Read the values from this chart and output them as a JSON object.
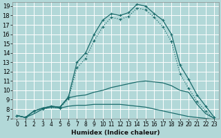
{
  "title": "",
  "xlabel": "Humidex (Indice chaleur)",
  "bg_color": "#b2d8d8",
  "grid_color": "#ffffff",
  "line_color": "#1a6b6b",
  "xlim": [
    -0.5,
    23.5
  ],
  "ylim": [
    7,
    19.4
  ],
  "xticks": [
    0,
    1,
    2,
    3,
    4,
    5,
    6,
    7,
    8,
    9,
    10,
    11,
    12,
    13,
    14,
    15,
    16,
    17,
    18,
    19,
    20,
    21,
    22,
    23
  ],
  "yticks": [
    7,
    8,
    9,
    10,
    11,
    12,
    13,
    14,
    15,
    16,
    17,
    18,
    19
  ],
  "c1_x": [
    0,
    1,
    2,
    3,
    4,
    5,
    6,
    7,
    8,
    9,
    10,
    11,
    12,
    13,
    14,
    15,
    16,
    17,
    18,
    19,
    20,
    21,
    22,
    23
  ],
  "c1_y": [
    7.3,
    7.1,
    7.8,
    8.1,
    8.3,
    8.2,
    9.3,
    13.0,
    14.0,
    16.0,
    17.5,
    18.2,
    18.0,
    18.3,
    19.2,
    19.0,
    18.2,
    17.5,
    16.0,
    12.7,
    11.2,
    9.5,
    8.3,
    7.1
  ],
  "c2_x": [
    0,
    1,
    2,
    3,
    4,
    5,
    6,
    7,
    8,
    9,
    10,
    11,
    12,
    13,
    14,
    15,
    16,
    17,
    18,
    19,
    20,
    21,
    22,
    23
  ],
  "c2_y": [
    7.3,
    7.1,
    7.8,
    8.0,
    8.2,
    8.1,
    9.1,
    12.4,
    13.4,
    15.3,
    16.8,
    17.8,
    17.6,
    17.9,
    18.8,
    18.6,
    17.8,
    16.8,
    15.2,
    11.8,
    10.2,
    8.8,
    7.8,
    6.9
  ],
  "c3_x": [
    0,
    1,
    2,
    3,
    4,
    5,
    6,
    7,
    8,
    9,
    10,
    11,
    12,
    13,
    14,
    15,
    16,
    17,
    18,
    19,
    20,
    21,
    22,
    23
  ],
  "c3_y": [
    7.3,
    7.1,
    7.5,
    8.0,
    8.2,
    8.1,
    8.3,
    8.4,
    8.4,
    8.5,
    8.5,
    8.5,
    8.5,
    8.4,
    8.3,
    8.2,
    8.0,
    7.8,
    7.6,
    7.4,
    7.2,
    7.1,
    7.0,
    6.9
  ],
  "c4_x": [
    0,
    1,
    2,
    3,
    4,
    5,
    6,
    7,
    8,
    9,
    10,
    11,
    12,
    13,
    14,
    15,
    16,
    17,
    18,
    19,
    20,
    21,
    22,
    23
  ],
  "c4_y": [
    7.3,
    7.1,
    7.8,
    8.1,
    8.3,
    8.2,
    9.2,
    9.4,
    9.5,
    9.8,
    10.0,
    10.3,
    10.5,
    10.7,
    10.9,
    11.0,
    10.9,
    10.8,
    10.5,
    10.0,
    9.8,
    8.5,
    7.5,
    7.0
  ]
}
